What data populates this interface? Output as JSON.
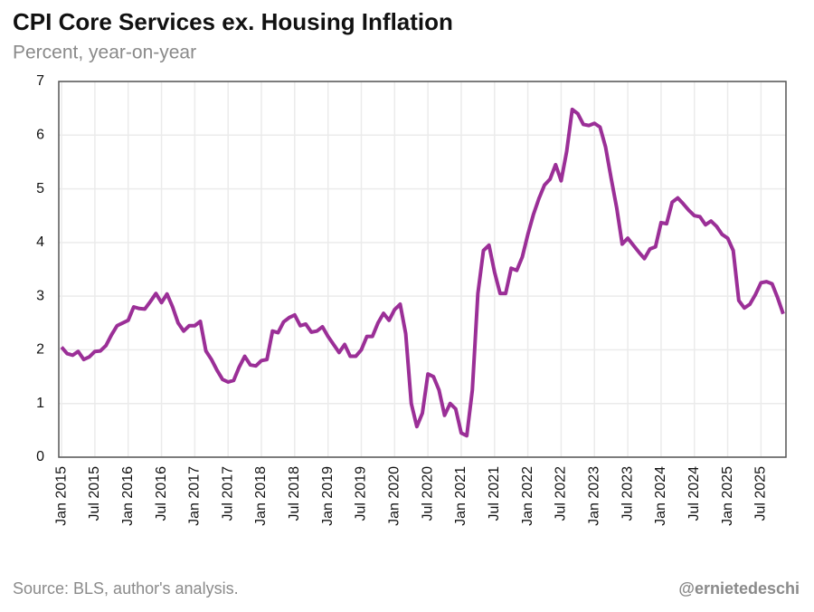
{
  "chart_data": {
    "type": "line",
    "title": "CPI Core Services ex. Housing Inflation",
    "subtitle": "Percent, year-on-year",
    "source": "Source: BLS, author's analysis.",
    "credit": "@ernietedeschi",
    "categories": [
      "Jan 2015",
      null,
      null,
      null,
      null,
      null,
      "Jul 2015",
      null,
      null,
      null,
      null,
      null,
      "Jan 2016",
      null,
      null,
      null,
      null,
      null,
      "Jul 2016",
      null,
      null,
      null,
      null,
      null,
      "Jan 2017",
      null,
      null,
      null,
      null,
      null,
      "Jul 2017",
      null,
      null,
      null,
      null,
      null,
      "Jan 2018",
      null,
      null,
      null,
      null,
      null,
      "Jul 2018",
      null,
      null,
      null,
      null,
      null,
      "Jan 2019",
      null,
      null,
      null,
      null,
      null,
      "Jul 2019",
      null,
      null,
      null,
      null,
      null,
      "Jan 2020",
      null,
      null,
      null,
      null,
      null,
      "Jul 2020",
      null,
      null,
      null,
      null,
      null,
      "Jan 2021",
      null,
      null,
      null,
      null,
      null,
      "Jul 2021",
      null,
      null,
      null,
      null,
      null,
      "Jan 2022",
      null,
      null,
      null,
      null,
      null,
      "Jul 2022",
      null,
      null,
      null,
      null,
      null,
      "Jan 2023",
      null,
      null,
      null,
      null,
      null,
      "Jul 2023",
      null,
      null,
      null,
      null,
      null,
      "Jan 2024",
      null,
      null,
      null,
      null,
      null,
      "Jul 2024",
      null,
      null,
      null,
      null,
      null,
      "Jan 2025",
      null,
      null,
      null,
      null,
      null,
      "Jul 2025",
      null,
      null,
      null,
      null
    ],
    "series": [
      {
        "name": "CPI Core Services ex. Housing",
        "color": "#9b2f97",
        "values": [
          2.05,
          1.93,
          1.9,
          1.97,
          1.82,
          1.87,
          1.97,
          1.98,
          2.08,
          2.28,
          2.45,
          2.5,
          2.55,
          2.8,
          2.77,
          2.76,
          2.9,
          3.05,
          2.88,
          3.04,
          2.8,
          2.5,
          2.35,
          2.45,
          2.45,
          2.53,
          1.98,
          1.82,
          1.62,
          1.45,
          1.4,
          1.43,
          1.68,
          1.88,
          1.72,
          1.7,
          1.8,
          1.82,
          2.35,
          2.32,
          2.52,
          2.6,
          2.65,
          2.45,
          2.48,
          2.33,
          2.35,
          2.43,
          2.25,
          2.1,
          1.95,
          2.1,
          1.88,
          1.88,
          2.0,
          2.25,
          2.25,
          2.5,
          2.68,
          2.55,
          2.75,
          2.85,
          2.3,
          1.0,
          0.57,
          0.82,
          1.55,
          1.5,
          1.25,
          0.78,
          1.0,
          0.9,
          0.45,
          0.4,
          1.25,
          3.05,
          3.85,
          3.95,
          3.45,
          3.05,
          3.05,
          3.52,
          3.48,
          3.73,
          4.15,
          4.52,
          4.82,
          5.07,
          5.18,
          5.45,
          5.15,
          5.7,
          6.48,
          6.4,
          6.2,
          6.18,
          6.22,
          6.15,
          5.78,
          5.2,
          4.65,
          3.97,
          4.08,
          3.95,
          3.82,
          3.7,
          3.88,
          3.92,
          4.37,
          4.35,
          4.75,
          4.83,
          4.72,
          4.6,
          4.5,
          4.48,
          4.33,
          4.4,
          4.3,
          4.15,
          4.08,
          3.85,
          2.92,
          2.78,
          2.85,
          3.03,
          3.25,
          3.27,
          3.23,
          2.97,
          2.67
        ]
      }
    ],
    "ylim": [
      0,
      7
    ],
    "yticks": [
      0,
      1,
      2,
      3,
      4,
      5,
      6,
      7
    ],
    "grid": true
  }
}
